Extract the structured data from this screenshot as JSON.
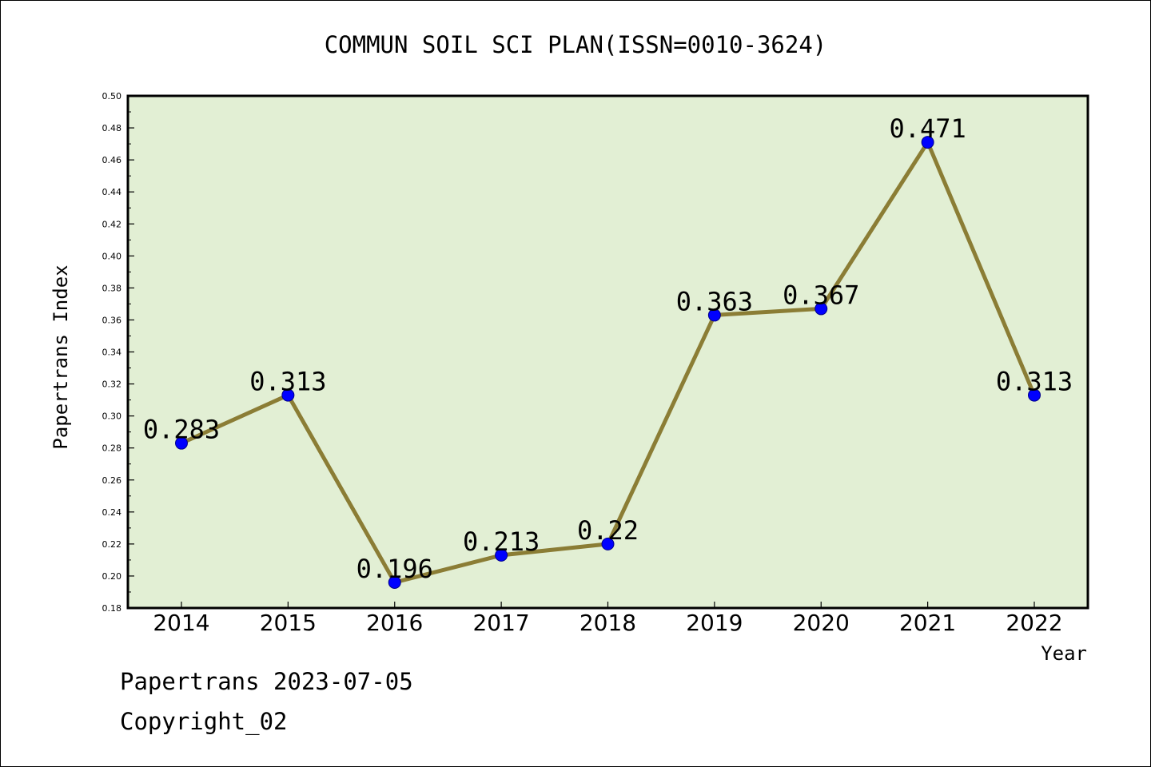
{
  "chart_data": {
    "type": "line",
    "title": "COMMUN SOIL SCI PLAN(ISSN=0010-3624)",
    "xlabel": "Year",
    "ylabel": "Papertrans Index",
    "categories": [
      "2014",
      "2015",
      "2016",
      "2017",
      "2018",
      "2019",
      "2020",
      "2021",
      "2022"
    ],
    "values": [
      0.283,
      0.313,
      0.196,
      0.213,
      0.22,
      0.363,
      0.367,
      0.471,
      0.313
    ],
    "data_labels": [
      "0.283",
      "0.313",
      "0.196",
      "0.213",
      "0.22",
      "0.363",
      "0.367",
      "0.471",
      "0.313"
    ],
    "ylim": [
      0.18,
      0.5
    ],
    "yticks": [
      "0.18",
      "0.20",
      "0.22",
      "0.24",
      "0.26",
      "0.28",
      "0.30",
      "0.32",
      "0.34",
      "0.36",
      "0.38",
      "0.40",
      "0.42",
      "0.44",
      "0.46",
      "0.48",
      "0.50"
    ],
    "grid": false,
    "colors": {
      "plot_background": "#e2efd4",
      "line": "#8b7d35",
      "marker": "#0000ff"
    }
  },
  "footer": {
    "line1": "Papertrans 2023-07-05",
    "line2": "Copyright_02"
  }
}
